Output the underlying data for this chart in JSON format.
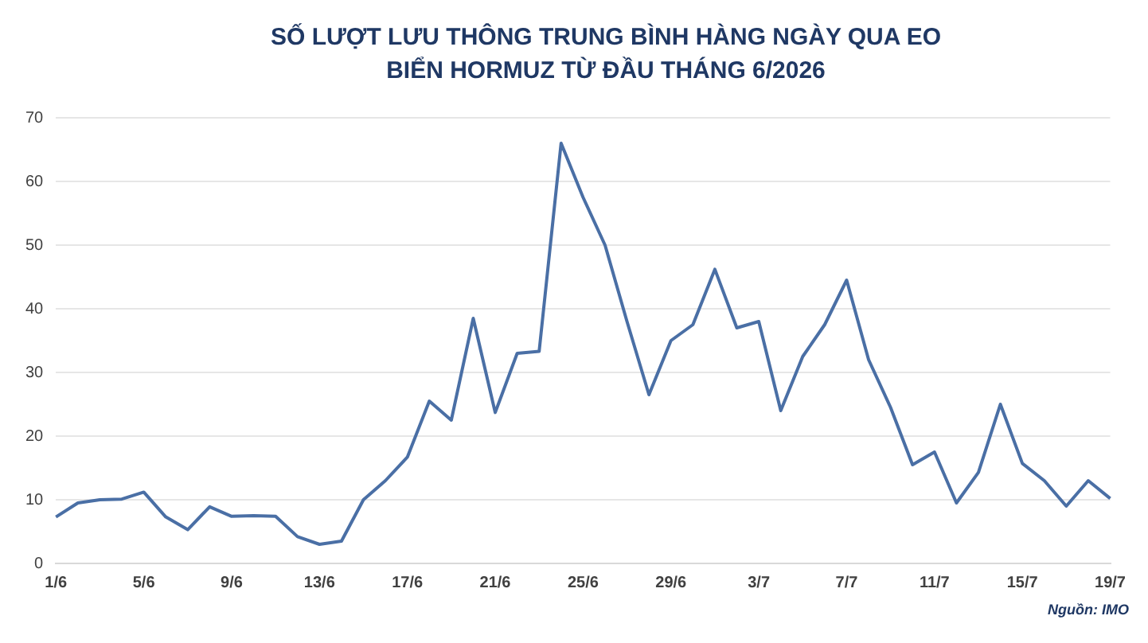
{
  "chart_data": {
    "type": "line",
    "title": "SỐ LƯỢT LƯU THÔNG TRUNG BÌNH HÀNG NGÀY QUA EO BIỂN HORMUZ TỪ ĐẦU THÁNG 6/2026",
    "categories": [
      "1/6",
      null,
      null,
      null,
      "5/6",
      null,
      null,
      null,
      "9/6",
      null,
      null,
      null,
      "13/6",
      null,
      null,
      null,
      "17/6",
      null,
      null,
      null,
      "21/6",
      null,
      null,
      null,
      "25/6",
      null,
      null,
      null,
      "29/6",
      null,
      null,
      null,
      "3/7",
      null,
      null,
      null,
      "7/7",
      null,
      null,
      null,
      "11/7",
      null,
      null,
      null,
      "15/7",
      null,
      null,
      null,
      "19/7"
    ],
    "series": [
      {
        "color": "#4a6fa5",
        "values": [
          7.3,
          9.5,
          10,
          10.1,
          11.2,
          7.3,
          5.3,
          8.9,
          7.4,
          7.5,
          7.4,
          4.2,
          3,
          3.5,
          10,
          13,
          16.7,
          25.5,
          22.5,
          38.5,
          23.7,
          33,
          33.3,
          66,
          57.5,
          50,
          38,
          26.5,
          35,
          37.5,
          46.2,
          37,
          38,
          24,
          32.5,
          37.5,
          44.5,
          32,
          24.5,
          15.5,
          17.5,
          9.5,
          14.3,
          25,
          15.7,
          13,
          9,
          13,
          10.2
        ]
      }
    ],
    "ylim": [
      0,
      70
    ],
    "yticks": [
      0,
      10,
      20,
      30,
      40,
      50,
      60,
      70
    ],
    "grid": "y",
    "legend": false,
    "marker": "none",
    "line_style": "solid",
    "annotations": [
      "Nguồn: IMO"
    ]
  }
}
